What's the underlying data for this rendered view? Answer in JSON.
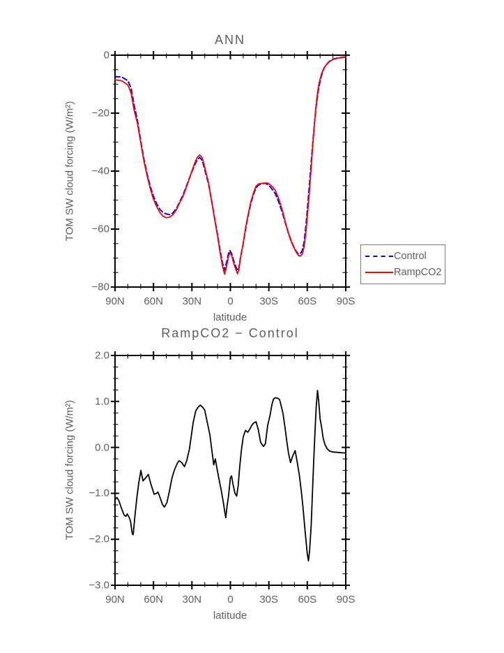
{
  "figure": {
    "background": "#ffffff",
    "axis_color": "#000000",
    "label_color": "#5e5e5e"
  },
  "chart_data": [
    {
      "id": "top",
      "type": "line",
      "title": "ANN",
      "xlabel": "latitude",
      "ylabel": "TOM SW cloud forcing (W/m²)",
      "xlim": [
        90,
        -90
      ],
      "ylim": [
        0,
        -80
      ],
      "grid": false,
      "xticks": {
        "values": [
          90,
          60,
          30,
          0,
          -30,
          -60,
          -90
        ],
        "labels": [
          "90N",
          "60N",
          "30N",
          "0",
          "30S",
          "60S",
          "90S"
        ],
        "minor_step": 10
      },
      "yticks": {
        "values": [
          0,
          -20,
          -40,
          -60,
          -80
        ],
        "labels": [
          "0",
          "−20",
          "−40",
          "−60",
          "−80"
        ],
        "minor_step": 5
      },
      "legend": {
        "position": "outside right, lower"
      },
      "series": [
        {
          "name": "Control",
          "color": "#0000ff",
          "style": "dashed",
          "width": 2,
          "x": [
            90,
            85,
            80,
            77.5,
            75,
            72.5,
            70,
            67.5,
            65,
            62.5,
            60,
            57.5,
            55,
            52.5,
            50,
            47.5,
            45,
            42,
            40,
            37,
            34,
            31,
            28,
            26,
            24,
            22,
            20,
            17,
            14,
            12,
            10,
            8,
            6,
            4.5,
            3,
            1.5,
            0.5,
            -1,
            -3,
            -5.5,
            -6.5,
            -8,
            -10,
            -12,
            -14,
            -16,
            -18,
            -20,
            -22,
            -25,
            -27,
            -29,
            -31,
            -33,
            -35,
            -37,
            -39,
            -41,
            -43,
            -45,
            -47,
            -49,
            -51,
            -53,
            -54.5,
            -56,
            -57.5,
            -59,
            -60,
            -61.5,
            -63,
            -64.5,
            -66,
            -67.5,
            -69,
            -71,
            -73,
            -75,
            -77,
            -80,
            -83,
            -86,
            -90
          ],
          "y": [
            -7.4,
            -7.5,
            -8.8,
            -11.3,
            -17.5,
            -22.6,
            -29.5,
            -35.8,
            -41,
            -45.3,
            -48.7,
            -51.3,
            -53.2,
            -54.3,
            -54.8,
            -55,
            -54.5,
            -52.8,
            -51,
            -48.3,
            -44.8,
            -41.3,
            -38,
            -36.2,
            -35.3,
            -36.3,
            -39.5,
            -44.5,
            -52,
            -57,
            -62,
            -67.5,
            -72,
            -74.2,
            -71.5,
            -68.5,
            -67.4,
            -68.5,
            -71.5,
            -74.4,
            -73.5,
            -69.5,
            -65,
            -59.5,
            -55,
            -51,
            -48,
            -45.8,
            -44.8,
            -44.3,
            -44.2,
            -44.6,
            -45.4,
            -46.5,
            -47.8,
            -49.8,
            -52.3,
            -55,
            -58.2,
            -61,
            -63.5,
            -65.7,
            -67.5,
            -68.6,
            -68.5,
            -67.5,
            -64.5,
            -58.5,
            -53.5,
            -45.5,
            -37,
            -29,
            -21.5,
            -15.5,
            -11,
            -7,
            -4.5,
            -3.2,
            -2.2,
            -1.4,
            -1,
            -0.8,
            -0.6
          ]
        },
        {
          "name": "RampCO2",
          "color": "#ff0000",
          "style": "solid",
          "width": 1.8,
          "x": [
            90,
            85,
            80,
            77.5,
            75,
            72.5,
            70,
            67.5,
            65,
            62.5,
            60,
            57.5,
            55,
            52.5,
            50,
            47.5,
            45,
            42,
            40,
            37,
            34,
            31,
            28,
            26,
            24,
            22,
            20,
            17,
            14,
            12,
            10,
            8,
            6,
            4.5,
            3,
            1.5,
            0.5,
            -1,
            -3,
            -5.5,
            -6.5,
            -8,
            -10,
            -12,
            -14,
            -16,
            -18,
            -20,
            -22,
            -25,
            -27,
            -29,
            -31,
            -33,
            -35,
            -37,
            -39,
            -41,
            -43,
            -45,
            -47,
            -49,
            -51,
            -53,
            -54.5,
            -56,
            -57.5,
            -59,
            -60,
            -61.5,
            -63,
            -64.5,
            -66,
            -67.5,
            -69,
            -71,
            -73,
            -75,
            -77,
            -80,
            -83,
            -86,
            -90
          ],
          "y": [
            -8.5,
            -8.8,
            -10.3,
            -13,
            -19.2,
            -23.6,
            -30.1,
            -36.5,
            -41.6,
            -46.1,
            -49.7,
            -52.3,
            -54.3,
            -55.6,
            -56.1,
            -55.9,
            -55.1,
            -53.2,
            -51.3,
            -48.7,
            -45.1,
            -41.2,
            -37.4,
            -35.4,
            -34.4,
            -35.4,
            -38.7,
            -44.1,
            -52.1,
            -57.3,
            -62.5,
            -68.3,
            -73.1,
            -75.6,
            -72.9,
            -69.5,
            -68.1,
            -69.1,
            -72.4,
            -75.4,
            -74.2,
            -69.7,
            -64.8,
            -59.1,
            -54.7,
            -50.5,
            -47.5,
            -45.2,
            -44.4,
            -44.2,
            -44.1,
            -44.1,
            -44.7,
            -45.5,
            -46.7,
            -48.7,
            -51.3,
            -54.3,
            -57.9,
            -61.1,
            -63.8,
            -65.9,
            -67.7,
            -69.1,
            -69.3,
            -68.7,
            -66.1,
            -60.6,
            -55.8,
            -47.8,
            -38.7,
            -29.7,
            -21.2,
            -14.5,
            -10,
            -6.5,
            -4.4,
            -3.2,
            -2.3,
            -1.5,
            -1.1,
            -0.9,
            -0.7
          ]
        }
      ]
    },
    {
      "id": "bottom",
      "type": "line",
      "title": "RampCO2 − Control",
      "xlabel": "latitude",
      "ylabel": "TOM SW cloud forcing (W/m²)",
      "xlim": [
        90,
        -90
      ],
      "ylim": [
        2.0,
        -3.0
      ],
      "grid": false,
      "xticks": {
        "values": [
          90,
          60,
          30,
          0,
          -30,
          -60,
          -90
        ],
        "labels": [
          "90N",
          "60N",
          "30N",
          "0",
          "30S",
          "60S",
          "90S"
        ],
        "minor_step": 10
      },
      "yticks": {
        "values": [
          2.0,
          1.0,
          0.0,
          -1.0,
          -2.0,
          -3.0
        ],
        "labels": [
          "2.0",
          "1.0",
          "0.0",
          "−1.0",
          "−2.0",
          "−3.0"
        ],
        "minor_step": 0.25
      },
      "series": [
        {
          "name": "RampCO2 − Control",
          "color": "#000000",
          "style": "solid",
          "width": 1.8,
          "x": [
            90,
            88.5,
            87,
            85,
            83,
            81.5,
            80.5,
            79,
            78,
            76.5,
            75.8,
            74.5,
            73,
            71.5,
            69.8,
            68.2,
            66,
            64,
            62,
            59.5,
            57.5,
            56.5,
            54.5,
            53,
            51.5,
            49.5,
            47.5,
            45.5,
            43.5,
            41.5,
            40,
            38,
            35.8,
            34,
            32,
            30.5,
            29,
            27,
            25,
            23.5,
            21.5,
            20,
            18,
            16,
            14.5,
            13,
            11.8,
            10.5,
            9,
            7,
            5.5,
            4.4,
            3.6,
            2.6,
            1.4,
            0,
            -0.9,
            -2.2,
            -3.6,
            -4.9,
            -6.1,
            -7.3,
            -8.6,
            -10,
            -11.8,
            -13.6,
            -15.2,
            -16.7,
            -18.2,
            -20,
            -21.8,
            -23.6,
            -25.8,
            -27.3,
            -29.1,
            -30.9,
            -32.4,
            -33.6,
            -35.1,
            -36.9,
            -38.4,
            -40,
            -41.1,
            -42.5,
            -43.8,
            -45.3,
            -46.9,
            -48.7,
            -50.5,
            -52.2,
            -53.8,
            -55.3,
            -56.6,
            -58.5,
            -60,
            -60.9,
            -61.8,
            -63,
            -64,
            -65,
            -66,
            -67,
            -68,
            -68.9,
            -70,
            -71,
            -72.4,
            -73.8,
            -75.5,
            -77.5,
            -80,
            -84,
            -88,
            -90
          ],
          "y": [
            -1.13,
            -1.09,
            -1.16,
            -1.32,
            -1.47,
            -1.5,
            -1.45,
            -1.52,
            -1.6,
            -1.88,
            -1.9,
            -1.5,
            -1.1,
            -0.78,
            -0.5,
            -0.73,
            -0.66,
            -0.59,
            -0.8,
            -1.02,
            -1,
            -0.97,
            -1.12,
            -1.24,
            -1.3,
            -1.2,
            -0.94,
            -0.66,
            -0.48,
            -0.35,
            -0.29,
            -0.33,
            -0.42,
            -0.28,
            -0.04,
            0.25,
            0.55,
            0.8,
            0.88,
            0.92,
            0.87,
            0.81,
            0.54,
            0.27,
            -0.05,
            -0.38,
            -0.25,
            -0.45,
            -0.68,
            -0.95,
            -1.2,
            -1.4,
            -1.53,
            -1.28,
            -1.05,
            -0.66,
            -0.62,
            -0.82,
            -1,
            -1.06,
            -0.83,
            -0.42,
            -0.06,
            0.23,
            0.37,
            0.33,
            0.4,
            0.48,
            0.53,
            0.56,
            0.38,
            0.11,
            0.02,
            0.08,
            0.48,
            0.69,
            0.93,
            1.05,
            1.08,
            1.07,
            1.04,
            0.86,
            0.73,
            0.45,
            0.18,
            -0.12,
            -0.33,
            -0.18,
            -0.07,
            -0.33,
            -0.6,
            -0.95,
            -1.3,
            -1.89,
            -2.32,
            -2.47,
            -2.25,
            -1.7,
            -1,
            -0.3,
            0.35,
            0.9,
            1.24,
            1,
            0.62,
            0.46,
            0.2,
            0.06,
            -0.03,
            -0.08,
            -0.1,
            -0.11,
            -0.12,
            -0.12
          ]
        }
      ]
    }
  ]
}
